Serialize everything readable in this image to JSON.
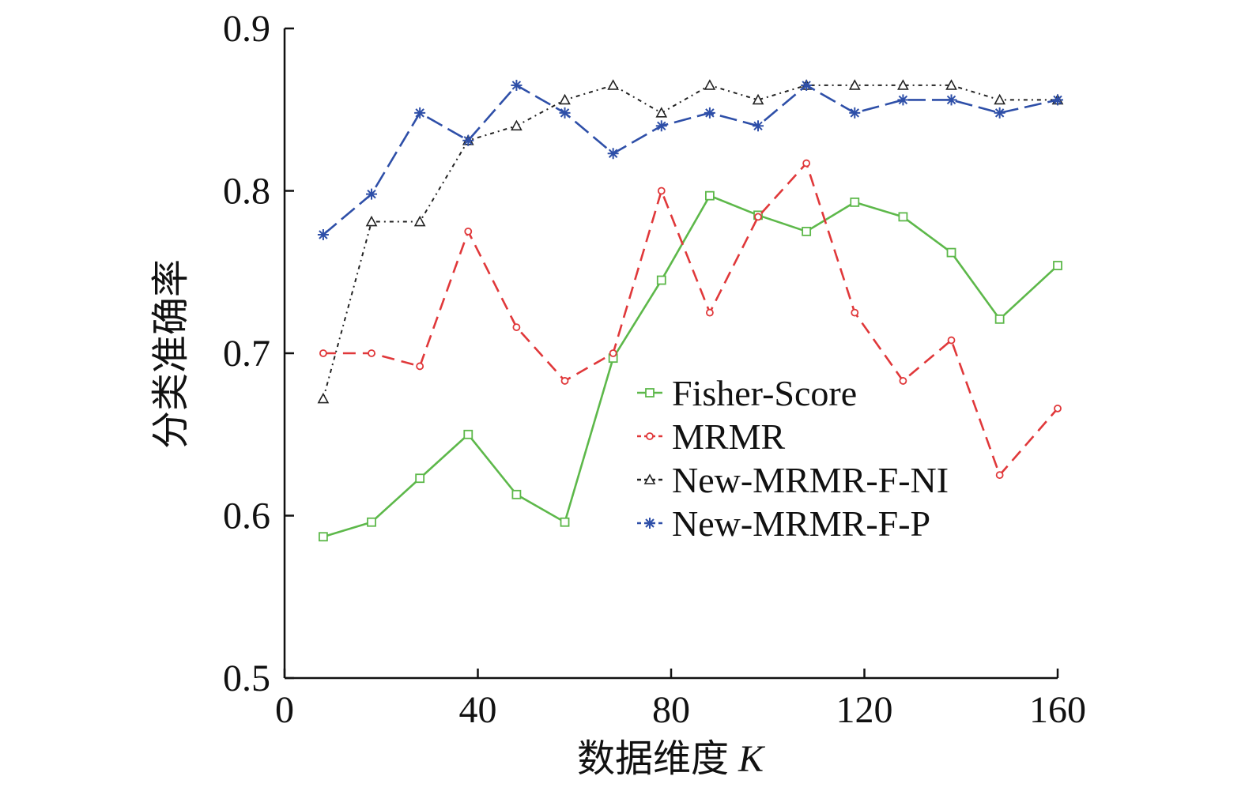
{
  "chart_data": {
    "type": "line",
    "xlabel": "数据维度",
    "xlabel_var": "K",
    "ylabel": "分类准确率",
    "xlim": [
      0,
      160
    ],
    "ylim": [
      0.5,
      0.9
    ],
    "xticks": [
      0,
      40,
      80,
      120,
      160
    ],
    "xtick_labels": [
      "0",
      "40",
      "80",
      "120",
      "160"
    ],
    "yticks": [
      0.5,
      0.6,
      0.7,
      0.8,
      0.9
    ],
    "ytick_labels": [
      "0.5",
      "0.6",
      "0.7",
      "0.8",
      "0.9"
    ],
    "grid": false,
    "legend": "center-right",
    "x": [
      8,
      18,
      28,
      38,
      48,
      58,
      68,
      78,
      88,
      98,
      108,
      118,
      128,
      138,
      148,
      160
    ],
    "series": [
      {
        "name": "Fisher-Score",
        "color": "#5db84a",
        "marker": "square",
        "dash": "solid",
        "values": [
          0.587,
          0.596,
          0.623,
          0.65,
          0.613,
          0.596,
          0.697,
          0.745,
          0.797,
          0.785,
          0.775,
          0.793,
          0.784,
          0.762,
          0.721,
          0.754
        ]
      },
      {
        "name": "MRMR",
        "color": "#e0383a",
        "marker": "circle",
        "dash": "dashed",
        "values": [
          0.7,
          0.7,
          0.692,
          0.775,
          0.716,
          0.683,
          0.7,
          0.8,
          0.725,
          0.784,
          0.817,
          0.725,
          0.683,
          0.708,
          0.625,
          0.666
        ]
      },
      {
        "name": "New-MRMR-F-NI",
        "color": "#222222",
        "marker": "triangle",
        "dash": "dashdot",
        "values": [
          0.672,
          0.781,
          0.781,
          0.831,
          0.84,
          0.856,
          0.865,
          0.848,
          0.865,
          0.856,
          0.865,
          0.865,
          0.865,
          0.865,
          0.856,
          0.856
        ]
      },
      {
        "name": "New-MRMR-F-P",
        "color": "#2e4fa8",
        "marker": "asterisk",
        "dash": "longdash",
        "values": [
          0.773,
          0.798,
          0.848,
          0.831,
          0.865,
          0.848,
          0.823,
          0.84,
          0.848,
          0.84,
          0.865,
          0.848,
          0.856,
          0.856,
          0.848,
          0.856
        ]
      }
    ]
  }
}
